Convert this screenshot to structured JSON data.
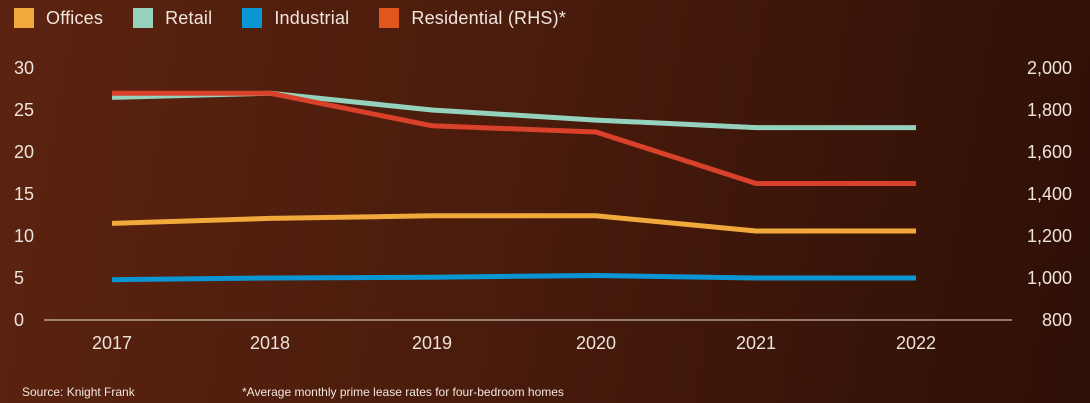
{
  "legend": [
    {
      "label": "Offices",
      "color": "#f2a93b"
    },
    {
      "label": "Retail",
      "color": "#94d2bd"
    },
    {
      "label": "Industrial",
      "color": "#0a96d2"
    },
    {
      "label": "Residential (RHS)*",
      "color": "#e0561e"
    }
  ],
  "footer": {
    "source": "Source: Knight Frank",
    "note": "*Average monthly prime lease rates for four-bedroom homes"
  },
  "chart_data": {
    "type": "line",
    "x": [
      "2017",
      "2018",
      "2019",
      "2020",
      "2021",
      "2022"
    ],
    "left_axis": {
      "ticks": [
        "0",
        "5",
        "10",
        "15",
        "20",
        "25",
        "30"
      ],
      "range": [
        0,
        30
      ]
    },
    "right_axis": {
      "ticks": [
        "800",
        "1,000",
        "1,200",
        "1,400",
        "1,600",
        "1,800",
        "2,000"
      ],
      "range": [
        800,
        2000
      ]
    },
    "grid": false,
    "legend_position": "top-left",
    "series": [
      {
        "name": "Offices",
        "axis": "left",
        "color": "#f2a93b",
        "values": [
          11.5,
          12.1,
          12.4,
          12.4,
          10.6,
          10.6
        ]
      },
      {
        "name": "Retail",
        "axis": "left",
        "color": "#94d2bd",
        "values": [
          26.5,
          27.0,
          25.0,
          23.8,
          22.9,
          22.9
        ]
      },
      {
        "name": "Industrial",
        "axis": "left",
        "color": "#0a96d2",
        "values": [
          4.8,
          5.0,
          5.1,
          5.3,
          5.0,
          5.0
        ]
      },
      {
        "name": "Residential (RHS)*",
        "axis": "right",
        "color": "#d9412a",
        "values": [
          1880,
          1880,
          1725,
          1695,
          1450,
          1450
        ]
      }
    ]
  }
}
